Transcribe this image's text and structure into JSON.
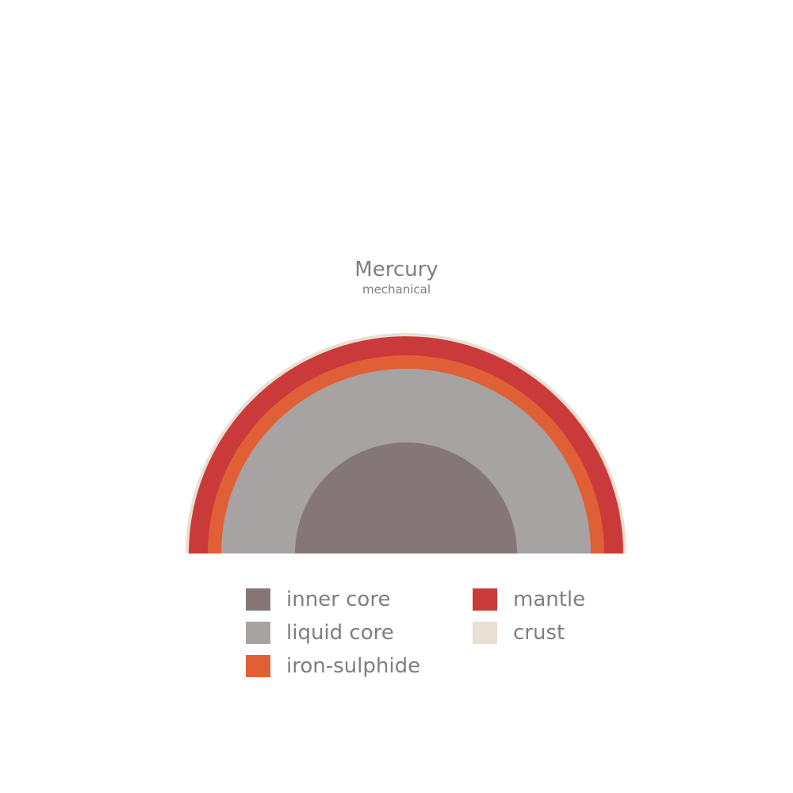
{
  "title": "Mercury",
  "subtitle": "mechanical",
  "layers": [
    {
      "name": "inner core",
      "color": "#857777"
    },
    {
      "name": "liquid core",
      "color": "#a7a3a2"
    },
    {
      "name": "iron-sulphide",
      "color": "#e15f37"
    },
    {
      "name": "mantle",
      "color": "#cb3a3a"
    },
    {
      "name": "crust",
      "color": "#e7e0d3"
    }
  ]
}
